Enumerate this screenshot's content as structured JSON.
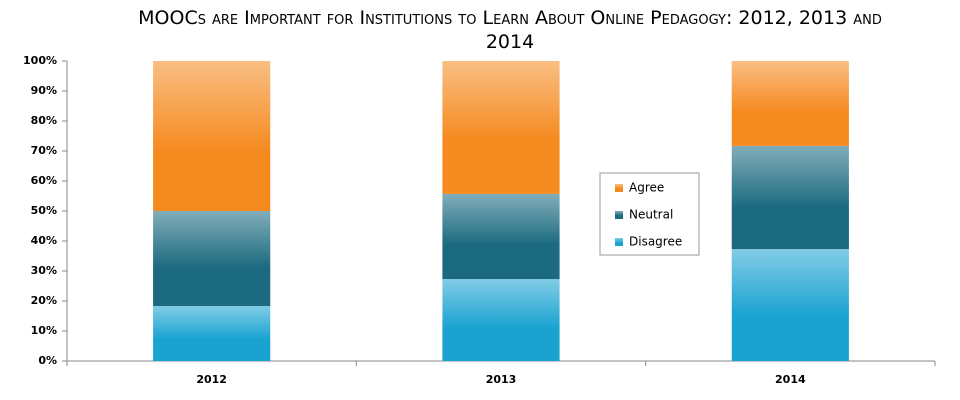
{
  "chart_data": {
    "type": "stacked_bar",
    "title": "MOOCs are Important for Institutions to Learn About Online Pedagogy: 2012, 2013 and 2014",
    "categories": [
      "2012",
      "2013",
      "2014"
    ],
    "series": [
      {
        "name": "Disagree",
        "color": "#1aa3d1",
        "values": [
          18.3,
          27.3,
          37.3
        ]
      },
      {
        "name": "Neutral",
        "color": "#1b6a80",
        "values": [
          31.7,
          28.4,
          34.4
        ]
      },
      {
        "name": "Agree",
        "color": "#f58a1f",
        "values": [
          50,
          44.3,
          28.3
        ]
      }
    ],
    "ylim": [
      0,
      100
    ],
    "yticks": [
      {
        "value": 0,
        "label": "0%"
      },
      {
        "value": 10,
        "label": "10%"
      },
      {
        "value": 20,
        "label": "20%"
      },
      {
        "value": 30,
        "label": "30%"
      },
      {
        "value": 40,
        "label": "40%"
      },
      {
        "value": 50,
        "label": "50%"
      },
      {
        "value": 60,
        "label": "60%"
      },
      {
        "value": 70,
        "label": "70%"
      },
      {
        "value": 80,
        "label": "80%"
      },
      {
        "value": 90,
        "label": "90%"
      },
      {
        "value": 100,
        "label": "100%"
      }
    ],
    "grid": false
  }
}
